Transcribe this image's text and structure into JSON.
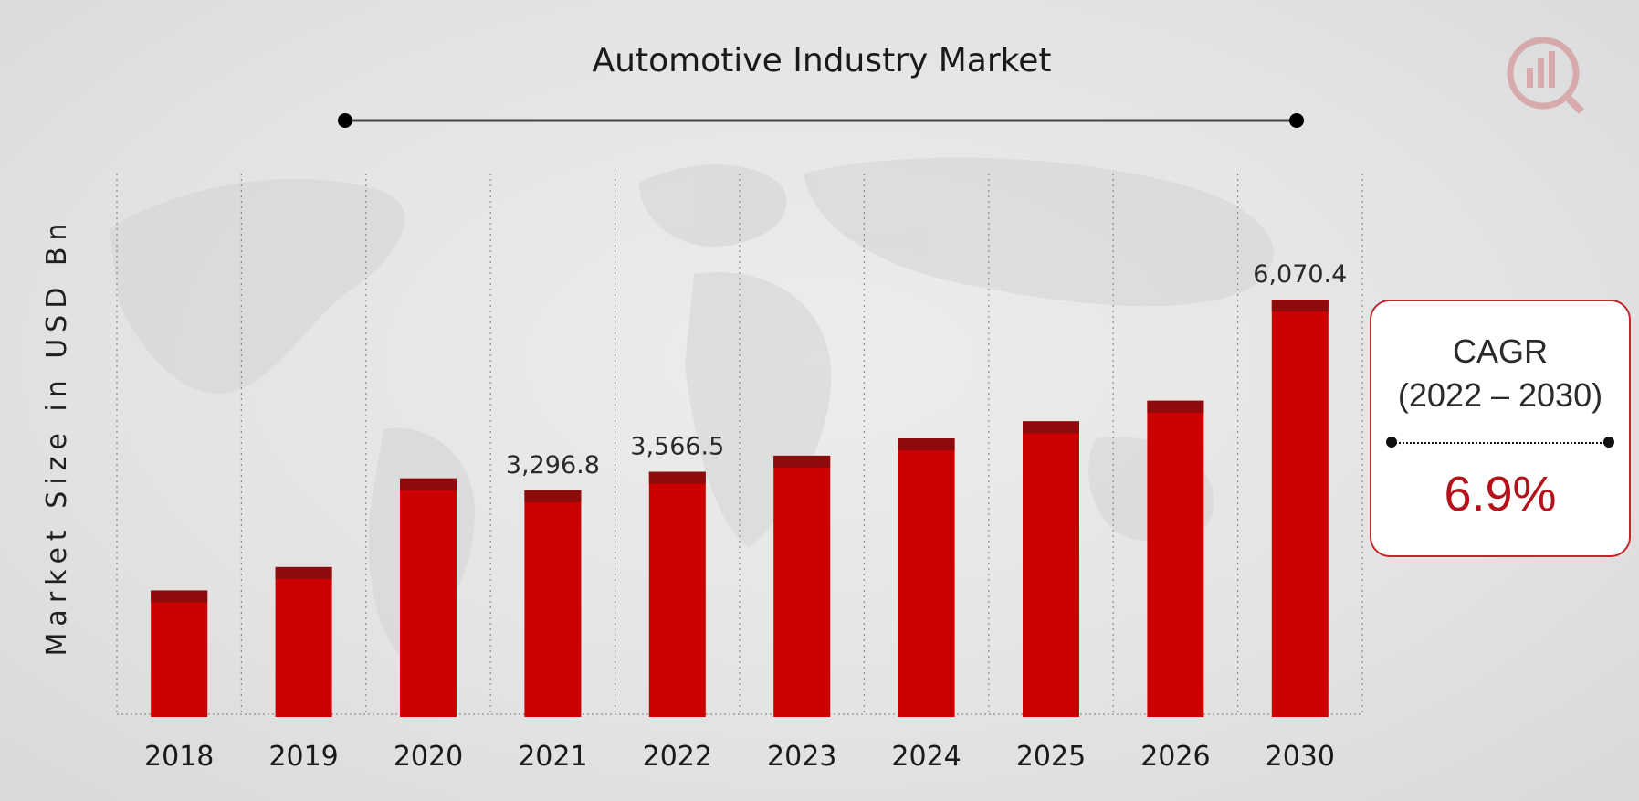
{
  "chart_data": {
    "type": "bar",
    "title": "Automotive Industry Market",
    "xlabel": "",
    "ylabel": "Market Size in USD Bn",
    "categories": [
      "2018",
      "2019",
      "2020",
      "2021",
      "2022",
      "2023",
      "2024",
      "2025",
      "2026",
      "2030"
    ],
    "values": [
      1840,
      2180,
      3470,
      3296.8,
      3566.5,
      3800,
      4050,
      4300,
      4600,
      6070.4
    ],
    "data_labels": [
      "",
      "",
      "",
      "3,296.8",
      "3,566.5",
      "",
      "",
      "",
      "",
      "6,070.4"
    ],
    "ylim": [
      0,
      6600
    ],
    "grid": "vertical-dotted",
    "bar_color": "#cc0000",
    "bar_cap_color": "#8e0b0b"
  },
  "cagr": {
    "title": "CAGR",
    "range": "(2022 – 2030)",
    "value": "6.9%",
    "accent": "#b3121a"
  }
}
